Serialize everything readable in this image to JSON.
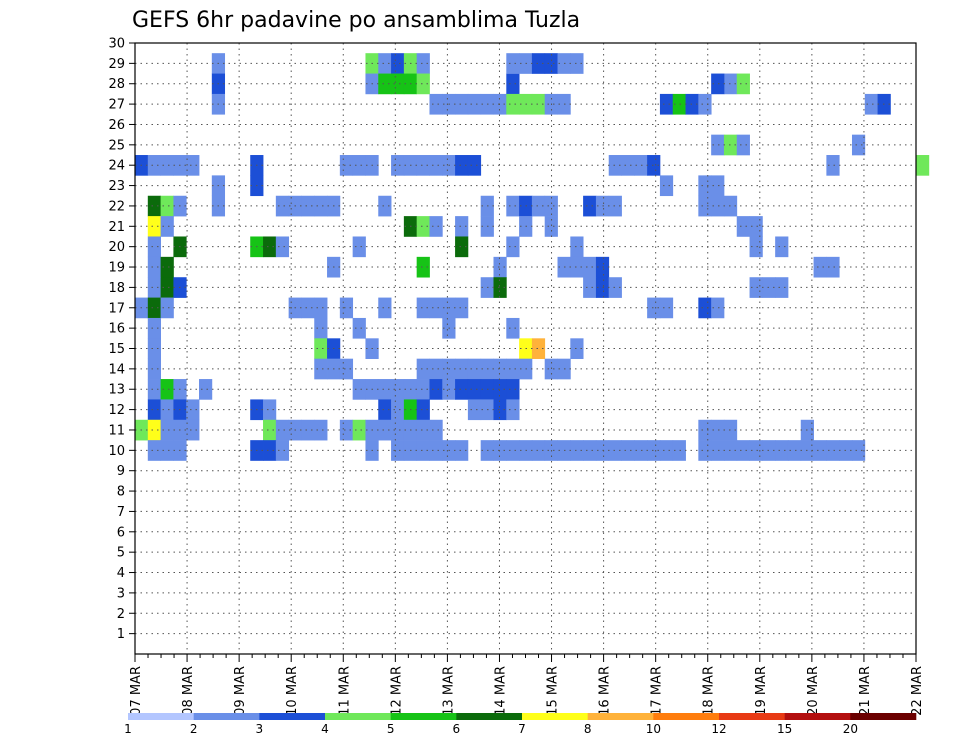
{
  "chart_data": {
    "type": "heatmap",
    "title": "GEFS 6hr padavine po ansamblima Tuzla",
    "xlabel": "",
    "ylabel": "",
    "x_ticks": [
      "07 MAR",
      "08 MAR",
      "09 MAR",
      "10 MAR",
      "11 MAR",
      "12 MAR",
      "13 MAR",
      "14 MAR",
      "15 MAR",
      "16 MAR",
      "17 MAR",
      "18 MAR",
      "19 MAR",
      "20 MAR",
      "21 MAR",
      "22 MAR"
    ],
    "y_ticks": [
      1,
      2,
      3,
      4,
      5,
      6,
      7,
      8,
      9,
      10,
      11,
      12,
      13,
      14,
      15,
      16,
      17,
      18,
      19,
      20,
      21,
      22,
      23,
      24,
      25,
      26,
      27,
      28,
      29,
      30
    ],
    "ylim": [
      0,
      30
    ],
    "time_steps_per_day": 4,
    "n_steps": 61,
    "grid": "dotted",
    "colorbar": {
      "labels": [
        "1",
        "2",
        "3",
        "4",
        "5",
        "6",
        "7",
        "8",
        "10",
        "12",
        "15",
        "20"
      ],
      "colors": [
        "#b3c6ff",
        "#6a8fe8",
        "#1c4fd6",
        "#6fe85a",
        "#16c316",
        "#0b6b0b",
        "#ffff1a",
        "#ffb23a",
        "#ff7d0d",
        "#e83a14",
        "#b30f0f",
        "#6b0000"
      ]
    },
    "cells": [
      [
        29,
        28,
        2
      ],
      [
        29,
        29,
        1
      ],
      [
        30,
        29,
        1
      ],
      [
        31,
        29,
        2
      ],
      [
        32,
        29,
        2
      ],
      [
        33,
        29,
        1
      ],
      [
        34,
        29,
        1
      ],
      [
        46,
        28,
        1
      ],
      [
        45,
        28,
        2
      ],
      [
        47,
        28,
        3
      ],
      [
        6,
        29,
        1
      ],
      [
        18,
        29,
        3
      ],
      [
        19,
        29,
        1
      ],
      [
        20,
        29,
        2
      ],
      [
        21,
        29,
        3
      ],
      [
        22,
        29,
        1
      ],
      [
        6,
        28,
        2
      ],
      [
        18,
        28,
        1
      ],
      [
        19,
        28,
        4
      ],
      [
        20,
        28,
        4
      ],
      [
        21,
        28,
        4
      ],
      [
        22,
        28,
        3
      ],
      [
        6,
        27,
        1
      ],
      [
        23,
        27,
        1
      ],
      [
        24,
        27,
        1
      ],
      [
        25,
        27,
        1
      ],
      [
        26,
        27,
        1
      ],
      [
        27,
        27,
        1
      ],
      [
        28,
        27,
        1
      ],
      [
        29,
        27,
        3
      ],
      [
        30,
        27,
        3
      ],
      [
        31,
        27,
        3
      ],
      [
        32,
        27,
        1
      ],
      [
        33,
        27,
        1
      ],
      [
        41,
        27,
        2
      ],
      [
        42,
        27,
        4
      ],
      [
        43,
        27,
        2
      ],
      [
        44,
        27,
        1
      ],
      [
        57,
        27,
        1
      ],
      [
        58,
        27,
        2
      ],
      [
        45,
        25,
        1
      ],
      [
        46,
        25,
        3
      ],
      [
        47,
        25,
        1
      ],
      [
        56,
        25,
        1
      ],
      [
        0,
        24,
        2
      ],
      [
        1,
        24,
        1
      ],
      [
        2,
        24,
        1
      ],
      [
        3,
        24,
        1
      ],
      [
        4,
        24,
        1
      ],
      [
        9,
        24,
        2
      ],
      [
        16,
        24,
        1
      ],
      [
        17,
        24,
        1
      ],
      [
        18,
        24,
        1
      ],
      [
        20,
        24,
        1
      ],
      [
        21,
        24,
        1
      ],
      [
        22,
        24,
        1
      ],
      [
        23,
        24,
        1
      ],
      [
        24,
        24,
        1
      ],
      [
        25,
        24,
        2
      ],
      [
        26,
        24,
        2
      ],
      [
        37,
        24,
        1
      ],
      [
        38,
        24,
        1
      ],
      [
        39,
        24,
        1
      ],
      [
        40,
        24,
        2
      ],
      [
        54,
        24,
        1
      ],
      [
        61,
        24,
        3
      ],
      [
        6,
        23,
        1
      ],
      [
        9,
        23,
        2
      ],
      [
        41,
        23,
        1
      ],
      [
        44,
        23,
        1
      ],
      [
        45,
        23,
        1
      ],
      [
        1,
        22,
        5
      ],
      [
        2,
        22,
        3
      ],
      [
        3,
        22,
        1
      ],
      [
        6,
        22,
        1
      ],
      [
        11,
        22,
        1
      ],
      [
        12,
        22,
        1
      ],
      [
        13,
        22,
        1
      ],
      [
        14,
        22,
        1
      ],
      [
        15,
        22,
        1
      ],
      [
        19,
        22,
        1
      ],
      [
        27,
        22,
        1
      ],
      [
        29,
        22,
        1
      ],
      [
        30,
        22,
        2
      ],
      [
        31,
        22,
        1
      ],
      [
        32,
        22,
        1
      ],
      [
        35,
        22,
        2
      ],
      [
        36,
        22,
        1
      ],
      [
        37,
        22,
        1
      ],
      [
        44,
        22,
        1
      ],
      [
        45,
        22,
        1
      ],
      [
        46,
        22,
        1
      ],
      [
        1,
        21,
        6
      ],
      [
        2,
        21,
        1
      ],
      [
        21,
        21,
        5
      ],
      [
        22,
        21,
        3
      ],
      [
        23,
        21,
        1
      ],
      [
        25,
        21,
        1
      ],
      [
        27,
        21,
        1
      ],
      [
        30,
        21,
        1
      ],
      [
        32,
        21,
        1
      ],
      [
        47,
        21,
        1
      ],
      [
        48,
        21,
        1
      ],
      [
        1,
        20,
        1
      ],
      [
        3,
        20,
        5
      ],
      [
        9,
        20,
        4
      ],
      [
        10,
        20,
        5
      ],
      [
        11,
        20,
        1
      ],
      [
        17,
        20,
        1
      ],
      [
        25,
        20,
        5
      ],
      [
        29,
        20,
        1
      ],
      [
        34,
        20,
        1
      ],
      [
        48,
        20,
        1
      ],
      [
        50,
        20,
        1
      ],
      [
        1,
        19,
        1
      ],
      [
        2,
        19,
        5
      ],
      [
        15,
        19,
        1
      ],
      [
        22,
        19,
        4
      ],
      [
        28,
        19,
        1
      ],
      [
        33,
        19,
        1
      ],
      [
        34,
        19,
        1
      ],
      [
        35,
        19,
        1
      ],
      [
        36,
        19,
        2
      ],
      [
        53,
        19,
        1
      ],
      [
        54,
        19,
        1
      ],
      [
        1,
        18,
        1
      ],
      [
        2,
        18,
        5
      ],
      [
        3,
        18,
        2
      ],
      [
        27,
        18,
        1
      ],
      [
        28,
        18,
        5
      ],
      [
        35,
        18,
        1
      ],
      [
        36,
        18,
        2
      ],
      [
        37,
        18,
        1
      ],
      [
        48,
        18,
        1
      ],
      [
        49,
        18,
        1
      ],
      [
        50,
        18,
        1
      ],
      [
        0,
        17,
        1
      ],
      [
        1,
        17,
        5
      ],
      [
        2,
        17,
        1
      ],
      [
        12,
        17,
        1
      ],
      [
        13,
        17,
        1
      ],
      [
        14,
        17,
        1
      ],
      [
        16,
        17,
        1
      ],
      [
        19,
        17,
        1
      ],
      [
        22,
        17,
        1
      ],
      [
        23,
        17,
        1
      ],
      [
        24,
        17,
        1
      ],
      [
        25,
        17,
        1
      ],
      [
        40,
        17,
        1
      ],
      [
        41,
        17,
        1
      ],
      [
        44,
        17,
        2
      ],
      [
        45,
        17,
        1
      ],
      [
        1,
        16,
        1
      ],
      [
        14,
        16,
        1
      ],
      [
        17,
        16,
        1
      ],
      [
        24,
        16,
        1
      ],
      [
        29,
        16,
        1
      ],
      [
        1,
        15,
        1
      ],
      [
        14,
        15,
        3
      ],
      [
        15,
        15,
        2
      ],
      [
        18,
        15,
        1
      ],
      [
        30,
        15,
        6
      ],
      [
        31,
        15,
        7
      ],
      [
        34,
        15,
        1
      ],
      [
        1,
        14,
        1
      ],
      [
        14,
        14,
        1
      ],
      [
        15,
        14,
        1
      ],
      [
        16,
        14,
        1
      ],
      [
        22,
        14,
        1
      ],
      [
        23,
        14,
        1
      ],
      [
        24,
        14,
        1
      ],
      [
        25,
        14,
        1
      ],
      [
        26,
        14,
        1
      ],
      [
        27,
        14,
        1
      ],
      [
        28,
        14,
        1
      ],
      [
        29,
        14,
        1
      ],
      [
        30,
        14,
        1
      ],
      [
        32,
        14,
        1
      ],
      [
        33,
        14,
        1
      ],
      [
        1,
        13,
        1
      ],
      [
        2,
        13,
        4
      ],
      [
        3,
        13,
        1
      ],
      [
        5,
        13,
        1
      ],
      [
        17,
        13,
        1
      ],
      [
        18,
        13,
        1
      ],
      [
        19,
        13,
        1
      ],
      [
        20,
        13,
        1
      ],
      [
        21,
        13,
        1
      ],
      [
        22,
        13,
        1
      ],
      [
        23,
        13,
        2
      ],
      [
        24,
        13,
        1
      ],
      [
        25,
        13,
        2
      ],
      [
        26,
        13,
        2
      ],
      [
        27,
        13,
        2
      ],
      [
        28,
        13,
        2
      ],
      [
        29,
        13,
        2
      ],
      [
        1,
        12,
        2
      ],
      [
        2,
        12,
        1
      ],
      [
        3,
        12,
        2
      ],
      [
        4,
        12,
        1
      ],
      [
        9,
        12,
        2
      ],
      [
        10,
        12,
        1
      ],
      [
        19,
        12,
        2
      ],
      [
        20,
        12,
        1
      ],
      [
        21,
        12,
        4
      ],
      [
        22,
        12,
        2
      ],
      [
        26,
        12,
        1
      ],
      [
        27,
        12,
        1
      ],
      [
        28,
        12,
        2
      ],
      [
        29,
        12,
        1
      ],
      [
        0,
        11,
        3
      ],
      [
        1,
        11,
        6
      ],
      [
        2,
        11,
        1
      ],
      [
        3,
        11,
        1
      ],
      [
        4,
        11,
        1
      ],
      [
        10,
        11,
        3
      ],
      [
        11,
        11,
        1
      ],
      [
        12,
        11,
        1
      ],
      [
        13,
        11,
        1
      ],
      [
        14,
        11,
        1
      ],
      [
        16,
        11,
        1
      ],
      [
        17,
        11,
        3
      ],
      [
        18,
        11,
        1
      ],
      [
        19,
        11,
        1
      ],
      [
        20,
        11,
        1
      ],
      [
        21,
        11,
        1
      ],
      [
        22,
        11,
        1
      ],
      [
        23,
        11,
        1
      ],
      [
        44,
        11,
        1
      ],
      [
        45,
        11,
        1
      ],
      [
        46,
        11,
        1
      ],
      [
        52,
        11,
        1
      ],
      [
        1,
        10,
        1
      ],
      [
        2,
        10,
        1
      ],
      [
        3,
        10,
        1
      ],
      [
        9,
        10,
        2
      ],
      [
        10,
        10,
        2
      ],
      [
        11,
        10,
        1
      ],
      [
        18,
        10,
        1
      ],
      [
        20,
        10,
        1
      ],
      [
        21,
        10,
        1
      ],
      [
        22,
        10,
        1
      ],
      [
        23,
        10,
        1
      ],
      [
        24,
        10,
        1
      ],
      [
        25,
        10,
        1
      ],
      [
        27,
        10,
        1
      ],
      [
        28,
        10,
        1
      ],
      [
        29,
        10,
        1
      ],
      [
        30,
        10,
        1
      ],
      [
        31,
        10,
        1
      ],
      [
        32,
        10,
        1
      ],
      [
        33,
        10,
        1
      ],
      [
        34,
        10,
        1
      ],
      [
        35,
        10,
        1
      ],
      [
        36,
        10,
        1
      ],
      [
        37,
        10,
        1
      ],
      [
        38,
        10,
        1
      ],
      [
        39,
        10,
        1
      ],
      [
        40,
        10,
        1
      ],
      [
        41,
        10,
        1
      ],
      [
        42,
        10,
        1
      ],
      [
        44,
        10,
        1
      ],
      [
        45,
        10,
        1
      ],
      [
        46,
        10,
        1
      ],
      [
        47,
        10,
        1
      ],
      [
        48,
        10,
        1
      ],
      [
        49,
        10,
        1
      ],
      [
        50,
        10,
        1
      ],
      [
        51,
        10,
        1
      ],
      [
        52,
        10,
        1
      ],
      [
        53,
        10,
        1
      ],
      [
        54,
        10,
        1
      ],
      [
        55,
        10,
        1
      ],
      [
        56,
        10,
        1
      ]
    ]
  }
}
